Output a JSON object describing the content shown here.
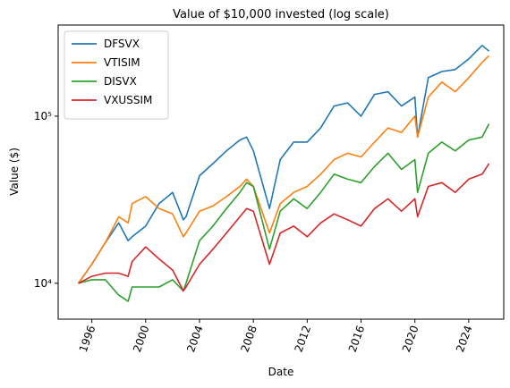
{
  "chart_data": {
    "type": "line",
    "title": "Value of $10,000 invested (log scale)",
    "xlabel": "Date",
    "ylabel": "Value ($)",
    "yscale": "log",
    "legend": "upper left",
    "grid": false,
    "x": [
      1995,
      1996,
      1997,
      1998,
      1998.7,
      1999,
      2000,
      2001,
      2002,
      2002.8,
      2003,
      2004,
      2005,
      2006,
      2007,
      2007.5,
      2008,
      2009.2,
      2010,
      2011,
      2012,
      2013,
      2014,
      2015,
      2016,
      2017,
      2018,
      2019,
      2020,
      2020.2,
      2021,
      2022,
      2023,
      2024,
      2025,
      2025.5
    ],
    "series": [
      {
        "name": "DFSVX",
        "color": "#1f77b4",
        "values": [
          10000,
          13000,
          17500,
          23000,
          18000,
          19000,
          22000,
          30000,
          35000,
          24000,
          25000,
          44000,
          52000,
          62000,
          72000,
          75000,
          62000,
          28000,
          55000,
          70000,
          70000,
          85000,
          115000,
          120000,
          100000,
          135000,
          140000,
          115000,
          130000,
          75000,
          170000,
          185000,
          190000,
          220000,
          265000,
          245000
        ]
      },
      {
        "name": "VTISIM",
        "color": "#ff7f0e",
        "values": [
          10000,
          13000,
          17500,
          25000,
          23000,
          30000,
          33000,
          28000,
          26000,
          19000,
          20000,
          27000,
          29000,
          33000,
          38000,
          42000,
          38000,
          20000,
          30000,
          35000,
          38000,
          45000,
          55000,
          60000,
          57000,
          70000,
          85000,
          80000,
          100000,
          75000,
          130000,
          160000,
          140000,
          170000,
          210000,
          230000
        ]
      },
      {
        "name": "DISVX",
        "color": "#2ca02c",
        "values": [
          10000,
          10500,
          10500,
          8500,
          7800,
          9500,
          9500,
          9500,
          10500,
          9000,
          10000,
          18000,
          22000,
          28000,
          35000,
          40000,
          38000,
          16000,
          27000,
          32000,
          28000,
          35000,
          45000,
          42000,
          40000,
          50000,
          60000,
          48000,
          55000,
          35000,
          60000,
          70000,
          62000,
          72000,
          75000,
          90000
        ]
      },
      {
        "name": "VXUSSIM",
        "color": "#d62728",
        "values": [
          10000,
          11000,
          11500,
          11500,
          11000,
          13500,
          16500,
          14000,
          12000,
          9000,
          9500,
          13000,
          16000,
          20000,
          25000,
          28000,
          27000,
          13000,
          20000,
          22000,
          19000,
          23000,
          26000,
          24000,
          22000,
          28000,
          32000,
          27000,
          32000,
          25000,
          38000,
          40000,
          35000,
          42000,
          45000,
          52000
        ]
      }
    ],
    "xlim": [
      1993.5,
      2026.6
    ],
    "xticks": [
      1996,
      2000,
      2004,
      2008,
      2012,
      2016,
      2020,
      2024
    ],
    "ylim": [
      6100,
      351000
    ],
    "yticks": [
      {
        "value": 10000,
        "label": "10⁴"
      },
      {
        "value": 100000,
        "label": "10⁵"
      }
    ]
  }
}
